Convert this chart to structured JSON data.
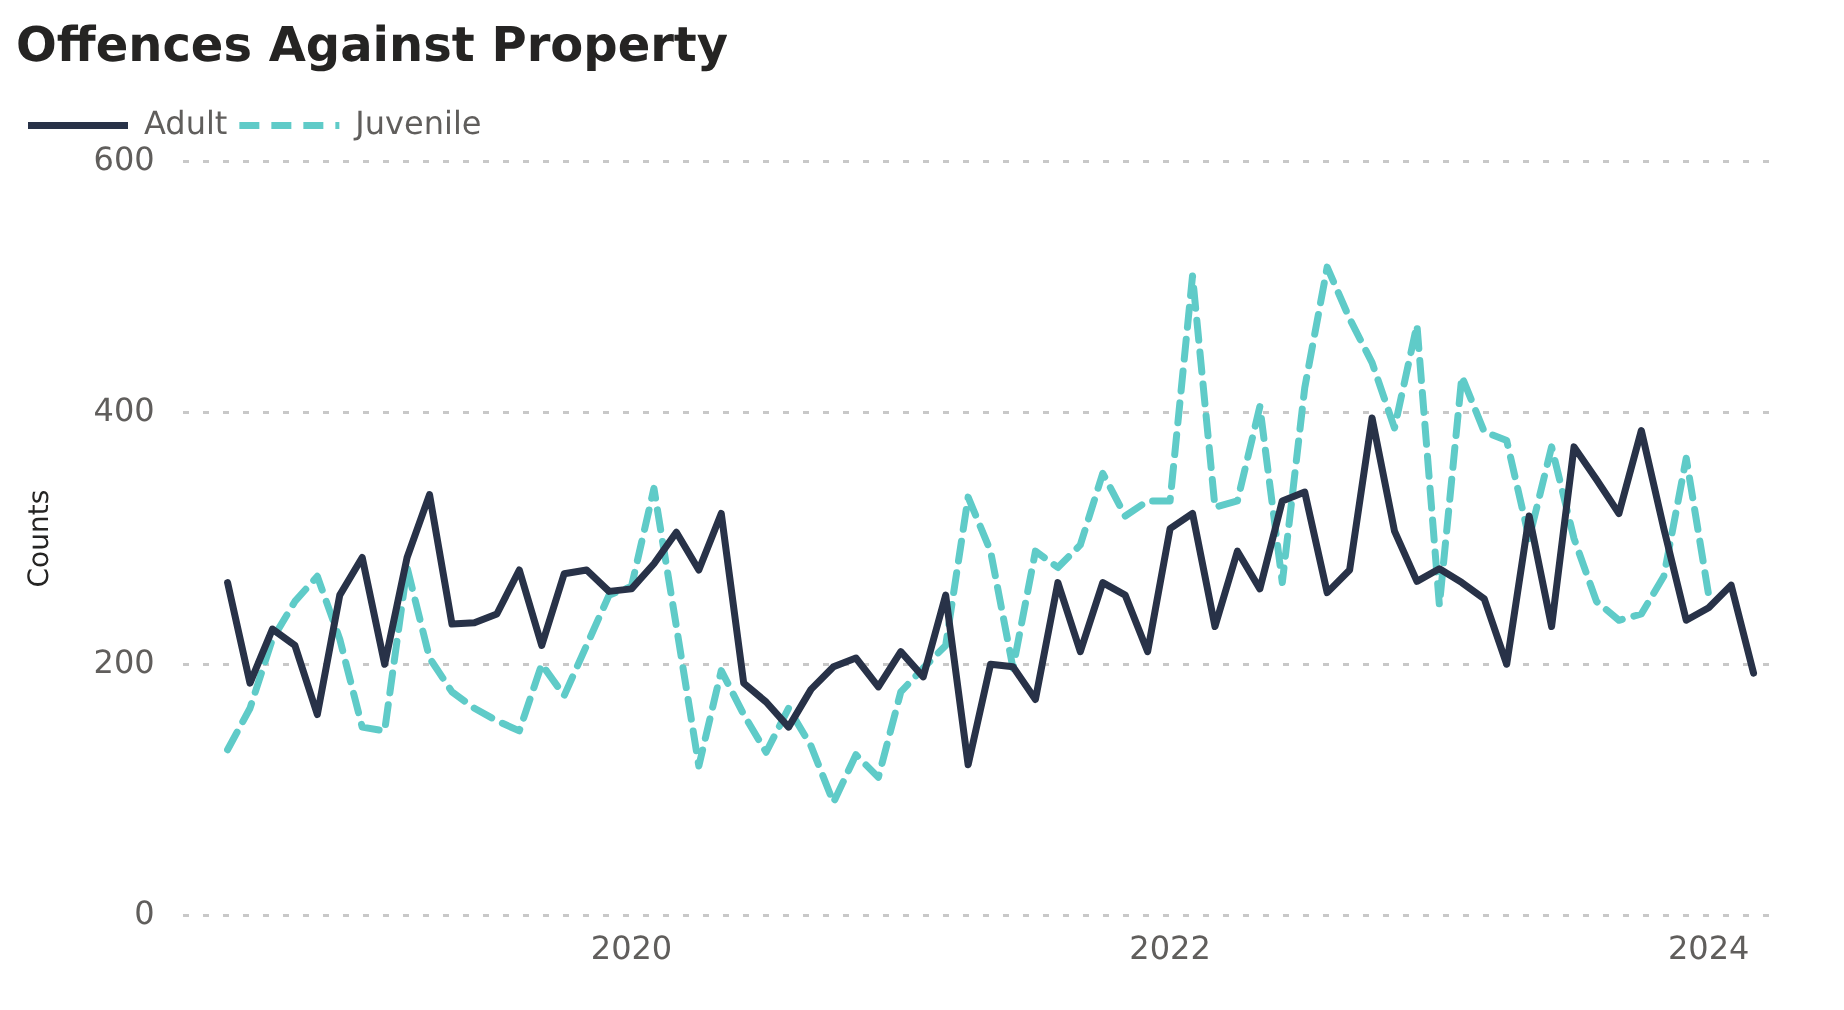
{
  "chart_data": {
    "type": "line",
    "title": "Offences Against Property",
    "ylabel": "Counts",
    "x": [
      "2018-07",
      "2018-08",
      "2018-09",
      "2018-10",
      "2018-11",
      "2018-12",
      "2019-01",
      "2019-02",
      "2019-03",
      "2019-04",
      "2019-05",
      "2019-06",
      "2019-07",
      "2019-08",
      "2019-09",
      "2019-10",
      "2019-11",
      "2019-12",
      "2020-01",
      "2020-02",
      "2020-03",
      "2020-04",
      "2020-05",
      "2020-06",
      "2020-07",
      "2020-08",
      "2020-09",
      "2020-10",
      "2020-11",
      "2020-12",
      "2021-01",
      "2021-02",
      "2021-03",
      "2021-04",
      "2021-05",
      "2021-06",
      "2021-07",
      "2021-08",
      "2021-09",
      "2021-10",
      "2021-11",
      "2021-12",
      "2022-01",
      "2022-02",
      "2022-03",
      "2022-04",
      "2022-05",
      "2022-06",
      "2022-07",
      "2022-08",
      "2022-09",
      "2022-10",
      "2022-11",
      "2022-12",
      "2023-01",
      "2023-02",
      "2023-03",
      "2023-04",
      "2023-05",
      "2023-06",
      "2023-07",
      "2023-08",
      "2023-09",
      "2023-10",
      "2023-11",
      "2023-12",
      "2024-01",
      "2024-02",
      "2024-03"
    ],
    "series": [
      {
        "name": "Adult",
        "color": "#283248",
        "line_style": "solid",
        "values": [
          265,
          185,
          228,
          215,
          160,
          255,
          285,
          200,
          285,
          335,
          232,
          233,
          240,
          275,
          215,
          272,
          275,
          258,
          260,
          280,
          305,
          275,
          320,
          185,
          170,
          150,
          180,
          198,
          205,
          182,
          210,
          190,
          255,
          120,
          200,
          198,
          172,
          265,
          210,
          265,
          255,
          210,
          308,
          320,
          230,
          290,
          260,
          330,
          337,
          257,
          275,
          396,
          306,
          266,
          276,
          265,
          252,
          200,
          318,
          230,
          373,
          347,
          320,
          386,
          308,
          235,
          245,
          263,
          193
        ]
      },
      {
        "name": "Juvenile",
        "color": "#5fcbc8",
        "line_style": "dashed",
        "values": [
          132,
          165,
          220,
          250,
          270,
          220,
          150,
          147,
          277,
          205,
          178,
          165,
          155,
          147,
          200,
          175,
          215,
          255,
          262,
          340,
          230,
          119,
          195,
          160,
          130,
          165,
          135,
          90,
          128,
          110,
          178,
          197,
          215,
          333,
          290,
          197,
          290,
          277,
          295,
          352,
          318,
          330,
          330,
          509,
          325,
          330,
          405,
          265,
          420,
          516,
          475,
          440,
          388,
          470,
          247,
          429,
          385,
          378,
          300,
          373,
          300,
          250,
          235,
          240,
          270,
          364,
          255,
          null,
          null
        ]
      }
    ],
    "xlim": [
      "2018-05",
      "2024-04"
    ],
    "xticks": [
      "2020",
      "2022",
      "2024"
    ],
    "ylim": [
      0,
      600
    ],
    "yticks": [
      0,
      200,
      400,
      600
    ],
    "grid": "y",
    "legend": "top left",
    "marker": "none"
  }
}
